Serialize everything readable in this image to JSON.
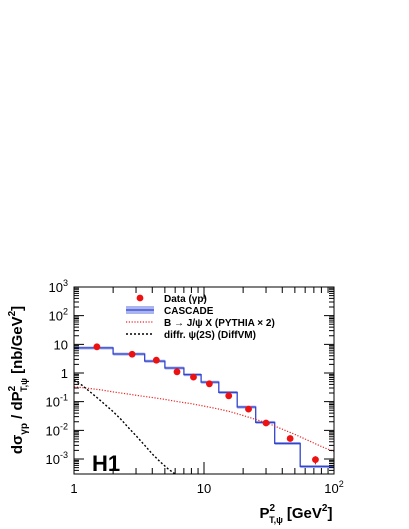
{
  "chart_data": {
    "type": "scatter",
    "title": "",
    "experiment_label": "H1",
    "xlabel": {
      "base": "P",
      "sup": "2",
      "sub": "T,ψ",
      "unit": "[GeV",
      "unit_sup": "2",
      "unit_close": "]"
    },
    "ylabel": {
      "prefix": "dσ",
      "prefix_sub": "γp",
      "mid": " / dP",
      "mid_sup": "2",
      "mid_sub": "T,ψ",
      "unit": "  [nb/GeV",
      "unit_sup": "2",
      "unit_close": "]"
    },
    "xscale": "log",
    "yscale": "log",
    "xlim": [
      1,
      100
    ],
    "ylim": [
      0.0003,
      1000
    ],
    "x_ticks": [
      {
        "value": 1,
        "base": "1",
        "exp": ""
      },
      {
        "value": 10,
        "base": "10",
        "exp": ""
      },
      {
        "value": 100,
        "base": "10",
        "exp": "2"
      }
    ],
    "y_ticks": [
      {
        "value": 0.001,
        "base": "10",
        "exp": "-3"
      },
      {
        "value": 0.01,
        "base": "10",
        "exp": "-2"
      },
      {
        "value": 0.1,
        "base": "10",
        "exp": "-1"
      },
      {
        "value": 1,
        "base": "1",
        "exp": ""
      },
      {
        "value": 10,
        "base": "10",
        "exp": ""
      },
      {
        "value": 100,
        "base": "10",
        "exp": "2"
      },
      {
        "value": 1000,
        "base": "10",
        "exp": "3"
      }
    ],
    "legend_position": "top-right",
    "legend": [
      {
        "key": "data",
        "label": "Data (γp)"
      },
      {
        "key": "cascade",
        "label": "CASCADE"
      },
      {
        "key": "bjpsi",
        "label": "B → J/ψ X (PYTHIA × 2)"
      },
      {
        "key": "diffr",
        "label": "diffr. ψ(2S) (DiffVM)"
      }
    ],
    "colors": {
      "data": "#ee1111",
      "cascade_line": "#3344cc",
      "cascade_band": "#aab4ee",
      "bjpsi": "#ee2222",
      "diffr": "#000000"
    },
    "data_points": [
      {
        "x": 1.5,
        "y": 8.2,
        "yerr_low": 0.6,
        "yerr_high": 0.6
      },
      {
        "x": 2.8,
        "y": 4.5,
        "yerr_low": 0.35,
        "yerr_high": 0.35
      },
      {
        "x": 4.3,
        "y": 2.8,
        "yerr_low": 0.22,
        "yerr_high": 0.22
      },
      {
        "x": 6.2,
        "y": 1.1,
        "yerr_low": 0.09,
        "yerr_high": 0.09
      },
      {
        "x": 8.3,
        "y": 0.72,
        "yerr_low": 0.06,
        "yerr_high": 0.06
      },
      {
        "x": 11.0,
        "y": 0.42,
        "yerr_low": 0.035,
        "yerr_high": 0.035
      },
      {
        "x": 15.5,
        "y": 0.16,
        "yerr_low": 0.014,
        "yerr_high": 0.014
      },
      {
        "x": 22.0,
        "y": 0.055,
        "yerr_low": 0.006,
        "yerr_high": 0.006
      },
      {
        "x": 30.0,
        "y": 0.018,
        "yerr_low": 0.0025,
        "yerr_high": 0.0025
      },
      {
        "x": 46.0,
        "y": 0.0052,
        "yerr_low": 0.0009,
        "yerr_high": 0.0009
      },
      {
        "x": 72.0,
        "y": 0.00095,
        "yerr_low": 0.0003,
        "yerr_high": 0.0003
      }
    ],
    "cascade_bins": [
      {
        "x_low": 1.0,
        "x_high": 2.0,
        "y": 7.5
      },
      {
        "x_low": 2.0,
        "x_high": 3.5,
        "y": 4.6
      },
      {
        "x_low": 3.5,
        "x_high": 5.0,
        "y": 2.6
      },
      {
        "x_low": 5.0,
        "x_high": 7.0,
        "y": 1.5
      },
      {
        "x_low": 7.0,
        "x_high": 9.5,
        "y": 0.88
      },
      {
        "x_low": 9.5,
        "x_high": 13.0,
        "y": 0.48
      },
      {
        "x_low": 13.0,
        "x_high": 18.0,
        "y": 0.21
      },
      {
        "x_low": 18.0,
        "x_high": 25.0,
        "y": 0.065
      },
      {
        "x_low": 25.0,
        "x_high": 35.0,
        "y": 0.019
      },
      {
        "x_low": 35.0,
        "x_high": 55.0,
        "y": 0.0035
      },
      {
        "x_low": 55.0,
        "x_high": 100.0,
        "y": 0.00055
      }
    ],
    "cascade_band_rel": 0.12,
    "bjpsi_curve": [
      [
        1.0,
        0.33
      ],
      [
        1.3,
        0.29
      ],
      [
        1.6,
        0.26
      ],
      [
        2.0,
        0.22
      ],
      [
        2.5,
        0.19
      ],
      [
        3.2,
        0.16
      ],
      [
        4.0,
        0.14
      ],
      [
        5.0,
        0.12
      ],
      [
        6.3,
        0.1
      ],
      [
        8.0,
        0.085
      ],
      [
        10.0,
        0.07
      ],
      [
        12.6,
        0.057
      ],
      [
        15.8,
        0.045
      ],
      [
        20.0,
        0.033
      ],
      [
        25.0,
        0.024
      ],
      [
        31.6,
        0.017
      ],
      [
        40.0,
        0.011
      ],
      [
        50.0,
        0.0072
      ],
      [
        63.0,
        0.0045
      ],
      [
        79.0,
        0.0028
      ],
      [
        100.0,
        0.0018
      ]
    ],
    "diffr_curve": [
      [
        1.0,
        0.55
      ],
      [
        1.15,
        0.38
      ],
      [
        1.3,
        0.24
      ],
      [
        1.5,
        0.14
      ],
      [
        1.7,
        0.085
      ],
      [
        2.0,
        0.045
      ],
      [
        2.3,
        0.024
      ],
      [
        2.6,
        0.013
      ],
      [
        3.0,
        0.0065
      ],
      [
        3.5,
        0.003
      ],
      [
        4.0,
        0.0015
      ],
      [
        4.6,
        0.0008
      ],
      [
        5.3,
        0.00045
      ],
      [
        6.0,
        0.0003
      ]
    ]
  }
}
